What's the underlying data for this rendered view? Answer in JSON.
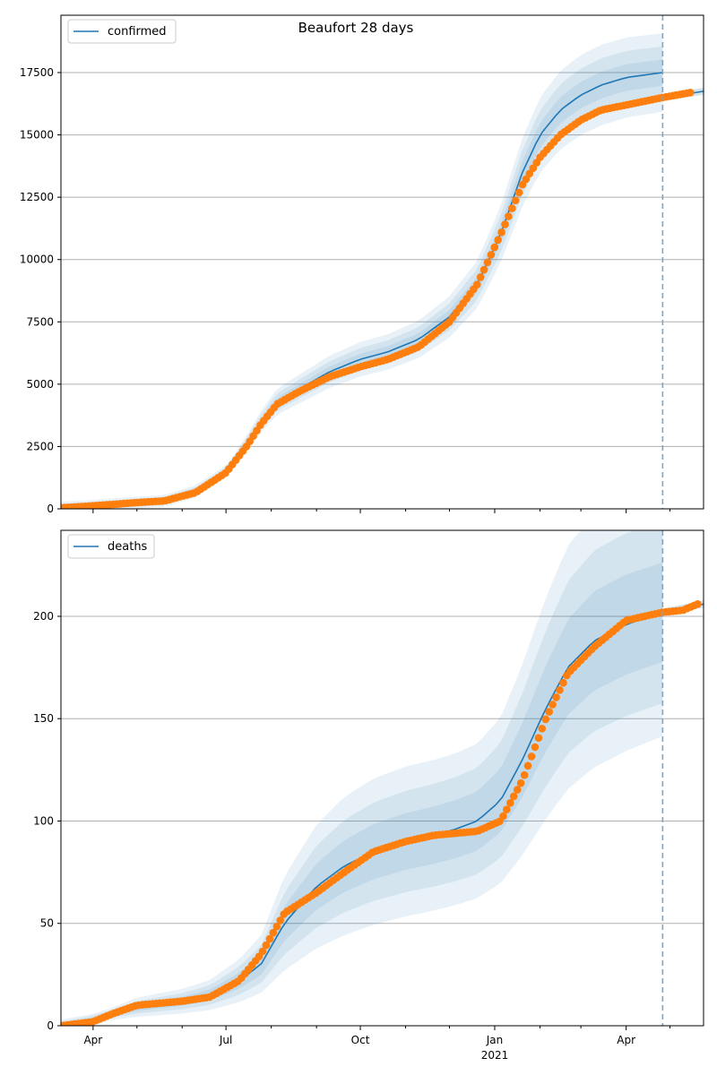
{
  "title": "Beaufort 28 days",
  "colors": {
    "model": "#1f77b4",
    "observed": "#ff7f0e",
    "band": "#1f77b4",
    "grid": "#b0b0b0",
    "cutoff": "#7aa6c8"
  },
  "x_axis": {
    "start": "2020-03-10",
    "end": "2021-05-24",
    "cutoff": "2021-04-26",
    "major_ticks": [
      {
        "date": "2020-04-01",
        "label": "Apr",
        "sublabel": ""
      },
      {
        "date": "2020-07-01",
        "label": "Jul",
        "sublabel": ""
      },
      {
        "date": "2020-10-01",
        "label": "Oct",
        "sublabel": ""
      },
      {
        "date": "2021-01-01",
        "label": "Jan",
        "sublabel": "2021"
      },
      {
        "date": "2021-04-01",
        "label": "Apr",
        "sublabel": ""
      }
    ],
    "minor_ticks": [
      "2020-05-01",
      "2020-06-01",
      "2020-08-01",
      "2020-09-01",
      "2020-11-01",
      "2020-12-01",
      "2021-02-01",
      "2021-03-01",
      "2021-05-01"
    ]
  },
  "chart_data": [
    {
      "type": "line",
      "panel": "top",
      "title": "Beaufort 28 days",
      "legend": {
        "label": "confirmed",
        "placement": "top-left"
      },
      "ylim": [
        0,
        19800
      ],
      "yticks": [
        0,
        2500,
        5000,
        7500,
        10000,
        12500,
        15000,
        17500
      ],
      "grid": true,
      "model": {
        "dates": [
          "2020-03-10",
          "2020-04-01",
          "2020-05-01",
          "2020-05-20",
          "2020-06-10",
          "2020-07-01",
          "2020-07-15",
          "2020-07-25",
          "2020-08-05",
          "2020-08-20",
          "2020-09-10",
          "2020-10-01",
          "2020-10-20",
          "2020-11-10",
          "2020-12-01",
          "2020-12-20",
          "2021-01-05",
          "2021-01-20",
          "2021-02-01",
          "2021-02-15",
          "2021-03-01",
          "2021-03-15",
          "2021-04-01",
          "2021-04-26"
        ],
        "values": [
          40,
          120,
          250,
          320,
          700,
          1500,
          2600,
          3500,
          4300,
          4800,
          5500,
          6000,
          6300,
          6800,
          7700,
          9000,
          11000,
          13500,
          15000,
          16000,
          16600,
          17000,
          17300,
          17500
        ],
        "band_rel": [
          [
            0.045,
            0.09,
            0.14
          ],
          [
            0.03,
            0.06,
            0.09
          ]
        ]
      },
      "observed": {
        "dates": [
          "2020-03-10",
          "2020-04-01",
          "2020-05-01",
          "2020-05-20",
          "2020-06-10",
          "2020-07-01",
          "2020-07-15",
          "2020-07-25",
          "2020-08-05",
          "2020-08-20",
          "2020-09-10",
          "2020-10-01",
          "2020-10-20",
          "2020-11-10",
          "2020-12-01",
          "2020-12-20",
          "2021-01-05",
          "2021-01-20",
          "2021-02-01",
          "2021-02-15",
          "2021-03-01",
          "2021-03-15",
          "2021-04-01",
          "2021-04-26",
          "2021-05-15"
        ],
        "values": [
          40,
          120,
          250,
          320,
          650,
          1450,
          2500,
          3400,
          4200,
          4700,
          5300,
          5700,
          6000,
          6500,
          7500,
          9000,
          11000,
          13000,
          14100,
          15000,
          15600,
          16000,
          16200,
          16500,
          16700
        ]
      },
      "forecast": {
        "dates": [
          "2021-04-26",
          "2021-05-10",
          "2021-05-24"
        ],
        "values": [
          16500,
          16620,
          16750
        ]
      }
    },
    {
      "type": "line",
      "panel": "bottom",
      "legend": {
        "label": "deaths",
        "placement": "top-left"
      },
      "ylim": [
        0,
        242
      ],
      "yticks": [
        0,
        50,
        100,
        150,
        200
      ],
      "grid": true,
      "model": {
        "dates": [
          "2020-03-10",
          "2020-04-01",
          "2020-04-15",
          "2020-05-01",
          "2020-06-01",
          "2020-06-20",
          "2020-07-10",
          "2020-07-25",
          "2020-08-10",
          "2020-09-01",
          "2020-09-20",
          "2020-10-10",
          "2020-11-01",
          "2020-11-20",
          "2020-12-05",
          "2020-12-20",
          "2021-01-05",
          "2021-01-20",
          "2021-02-05",
          "2021-02-20",
          "2021-03-10",
          "2021-04-01",
          "2021-04-26"
        ],
        "values": [
          0,
          3,
          6,
          9,
          12,
          15,
          22,
          30,
          50,
          68,
          78,
          85,
          90,
          93,
          96,
          100,
          110,
          130,
          155,
          175,
          188,
          196,
          202
        ],
        "band_rel": [
          [
            0.2,
            0.35,
            0.55
          ],
          [
            0.12,
            0.22,
            0.3
          ]
        ]
      },
      "observed": {
        "dates": [
          "2020-03-10",
          "2020-04-01",
          "2020-04-15",
          "2020-05-01",
          "2020-06-01",
          "2020-06-20",
          "2020-07-10",
          "2020-07-25",
          "2020-08-10",
          "2020-09-01",
          "2020-09-20",
          "2020-10-10",
          "2020-11-01",
          "2020-11-20",
          "2020-12-05",
          "2020-12-20",
          "2021-01-05",
          "2021-01-20",
          "2021-02-05",
          "2021-02-20",
          "2021-03-10",
          "2021-04-01",
          "2021-04-26",
          "2021-05-10",
          "2021-05-20"
        ],
        "values": [
          0,
          2,
          6,
          10,
          12,
          14,
          22,
          35,
          55,
          65,
          75,
          85,
          90,
          93,
          94,
          95,
          100,
          120,
          150,
          172,
          185,
          198,
          202,
          203,
          206
        ]
      },
      "forecast": {
        "dates": [
          "2021-04-26",
          "2021-05-10",
          "2021-05-24"
        ],
        "values": [
          202,
          204,
          206
        ]
      }
    }
  ]
}
